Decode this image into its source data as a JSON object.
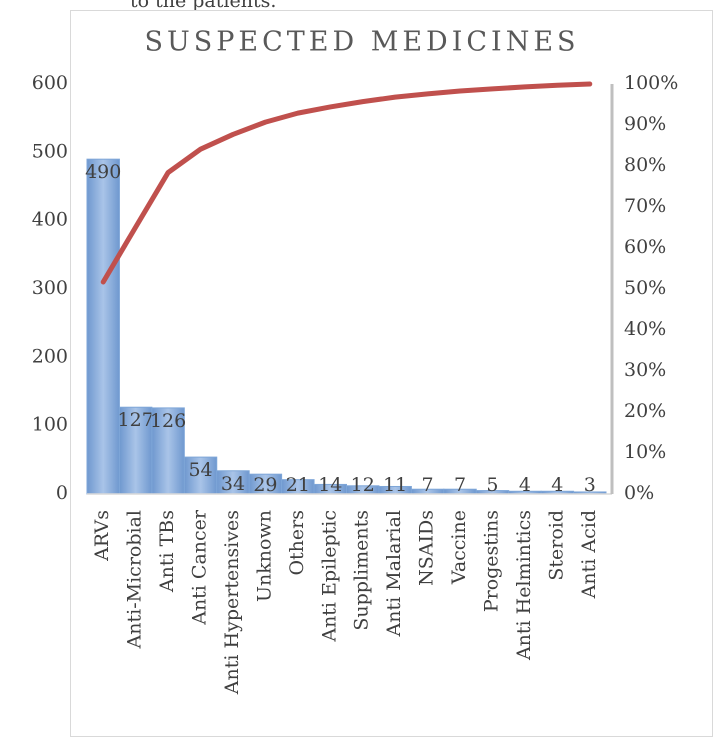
{
  "page_text": "to the patients.",
  "chart_data": {
    "type": "pareto",
    "title": "SUSPECTED MEDICINES",
    "categories": [
      "ARVs",
      "Anti-Microbial",
      "Anti TBs",
      "Anti Cancer",
      "Anti Hypertensives",
      "Unknown",
      "Others",
      "Anti Epileptic",
      "Suppliments",
      "Anti Malarial",
      "NSAIDs",
      "Vaccine",
      "Progestins",
      "Anti Helmintics",
      "Steroid",
      "Anti Acid"
    ],
    "series": [
      {
        "color": "#7ea6d8",
        "values": [
          490,
          127,
          126,
          54,
          34,
          29,
          21,
          14,
          12,
          11,
          7,
          7,
          5,
          4,
          4,
          3
        ]
      },
      {
        "color": "#c0504d",
        "axis": "y2",
        "values": [
          51.7,
          65.1,
          78.4,
          84.1,
          87.7,
          90.7,
          92.9,
          94.4,
          95.7,
          96.8,
          97.6,
          98.3,
          98.8,
          99.3,
          99.7,
          100
        ]
      }
    ],
    "ylim": [
      0,
      600
    ],
    "yticks": [
      0,
      100,
      200,
      300,
      400,
      500,
      600
    ],
    "y2lim": [
      0,
      100
    ],
    "y2ticks": [
      {
        "value": 0,
        "label": "0%"
      },
      {
        "value": 10,
        "label": "10%"
      },
      {
        "value": 20,
        "label": "20%"
      },
      {
        "value": 30,
        "label": "30%"
      },
      {
        "value": 40,
        "label": "40%"
      },
      {
        "value": 50,
        "label": "50%"
      },
      {
        "value": 60,
        "label": "60%"
      },
      {
        "value": 70,
        "label": "70%"
      },
      {
        "value": 80,
        "label": "80%"
      },
      {
        "value": 90,
        "label": "90%"
      },
      {
        "value": 100,
        "label": "100%"
      }
    ]
  }
}
